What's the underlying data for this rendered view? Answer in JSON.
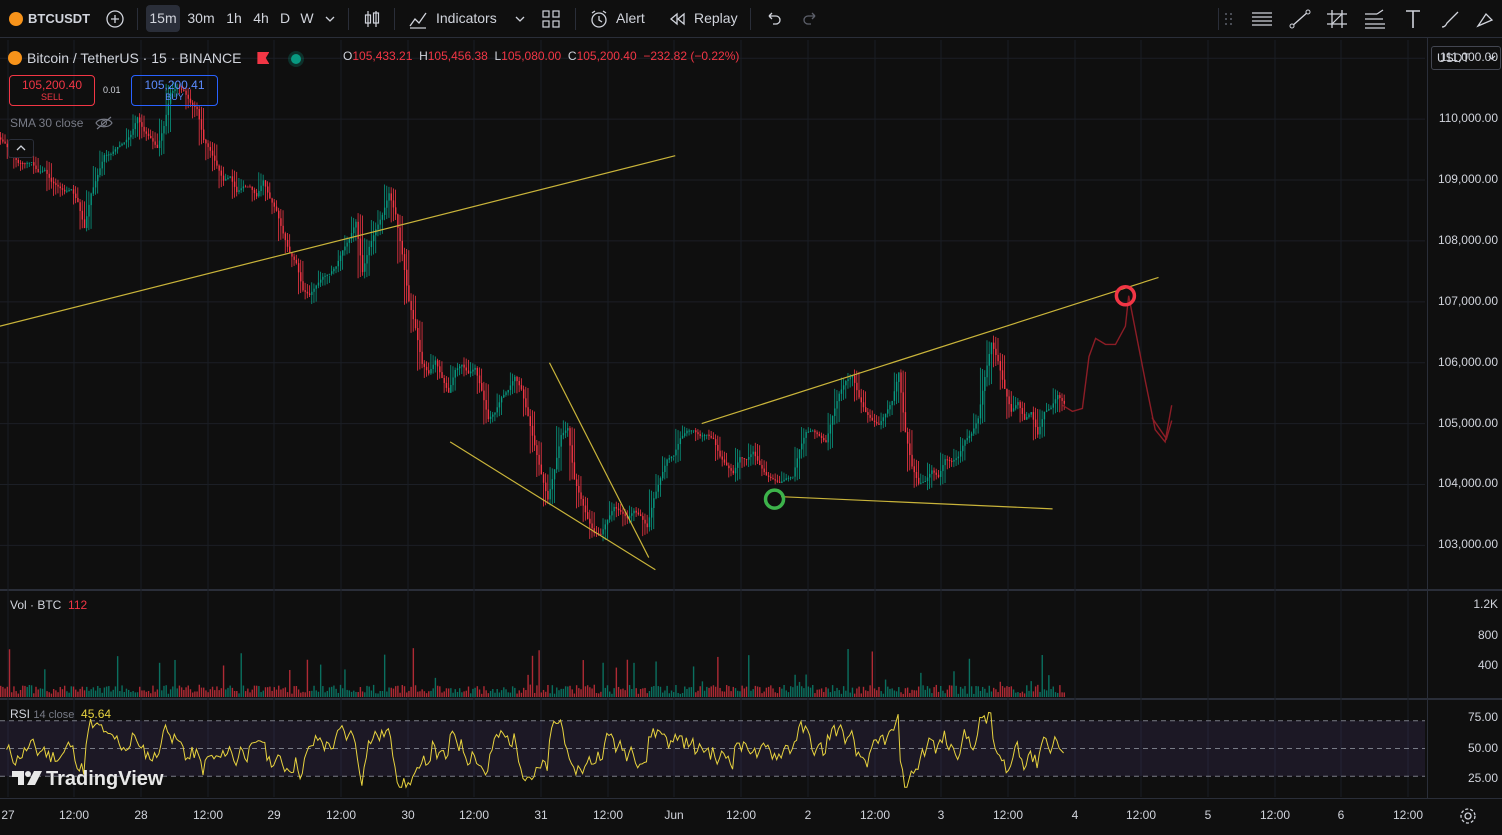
{
  "toolbar": {
    "symbol": "BTCUSDT",
    "intervals": [
      "15m",
      "30m",
      "1h",
      "4h",
      "D",
      "W"
    ],
    "active_interval": "15m",
    "indicators_label": "Indicators",
    "alert_label": "Alert",
    "replay_label": "Replay"
  },
  "legend": {
    "title": "Bitcoin / TetherUS · 15 · BINANCE",
    "open_key": "O",
    "open": "105,433.21",
    "high_key": "H",
    "high": "105,456.38",
    "low_key": "L",
    "low": "105,080.00",
    "close_key": "C",
    "close": "105,200.40",
    "change": "−232.82 (−0.22%)"
  },
  "trade": {
    "sell_price": "105,200.40",
    "sell_label": "SELL",
    "spread": "0.01",
    "buy_price": "105,200.41",
    "buy_label": "BUY"
  },
  "sma_label": "SMA 30 close",
  "volume_pane": {
    "label": "Vol · BTC",
    "value": "112"
  },
  "rsi_pane": {
    "label": "RSI",
    "params": "14 close",
    "value": "45.64"
  },
  "currency": "USDT",
  "branding": "TradingView",
  "colors": {
    "up": "#089981",
    "down": "#f23645",
    "trendline": "#c9b43a",
    "rsi": "#e8d33f",
    "accent": "#2962ff"
  },
  "chart_data": [
    {
      "type": "candlestick",
      "title": "",
      "yaxis_ticks": [
        "111,000.00",
        "110,000.00",
        "109,000.00",
        "108,000.00",
        "107,000.00",
        "106,000.00",
        "105,000.00",
        "104,000.00",
        "103,000.00"
      ],
      "ylim": [
        102300,
        111300
      ],
      "xaxis_ticks": [
        "27",
        "12:00",
        "28",
        "12:00",
        "29",
        "12:00",
        "30",
        "12:00",
        "31",
        "12:00",
        "Jun",
        "12:00",
        "2",
        "12:00",
        "3",
        "12:00",
        "4",
        "12:00",
        "5",
        "12:00",
        "6",
        "12:00"
      ],
      "price_path": [
        [
          0,
          109700
        ],
        [
          4,
          109300
        ],
        [
          8,
          109100
        ],
        [
          11,
          108800
        ],
        [
          13,
          108200
        ],
        [
          15,
          109200
        ],
        [
          18,
          109500
        ],
        [
          21,
          109900
        ],
        [
          24,
          109600
        ],
        [
          26,
          110300
        ],
        [
          28,
          110600
        ],
        [
          30,
          110100
        ],
        [
          32,
          109500
        ],
        [
          34,
          109000
        ],
        [
          36,
          108900
        ],
        [
          38,
          108800
        ],
        [
          40,
          108900
        ],
        [
          42,
          108500
        ],
        [
          44,
          107900
        ],
        [
          46,
          107300
        ],
        [
          48,
          107200
        ],
        [
          50,
          107500
        ],
        [
          52,
          107900
        ],
        [
          54,
          108200
        ],
        [
          55,
          107600
        ],
        [
          57,
          108200
        ],
        [
          59,
          108700
        ],
        [
          60,
          108300
        ],
        [
          61,
          107800
        ],
        [
          62,
          107000
        ],
        [
          63,
          106500
        ],
        [
          64,
          106000
        ],
        [
          66,
          105900
        ],
        [
          68,
          105500
        ],
        [
          70,
          106000
        ],
        [
          72,
          105800
        ],
        [
          74,
          105100
        ],
        [
          76,
          105500
        ],
        [
          78,
          105700
        ],
        [
          80,
          105200
        ],
        [
          82,
          104300
        ],
        [
          83,
          103800
        ],
        [
          85,
          104700
        ],
        [
          86,
          104800
        ],
        [
          87,
          104200
        ],
        [
          88,
          103700
        ],
        [
          90,
          103300
        ],
        [
          91,
          103100
        ],
        [
          92,
          103400
        ],
        [
          94,
          103600
        ],
        [
          96,
          103500
        ],
        [
          98,
          103400
        ],
        [
          99,
          103700
        ],
        [
          101,
          104300
        ],
        [
          103,
          104800
        ],
        [
          105,
          104900
        ],
        [
          107,
          104800
        ],
        [
          109,
          104600
        ],
        [
          111,
          104300
        ],
        [
          113,
          104500
        ],
        [
          115,
          104300
        ],
        [
          116,
          104200
        ],
        [
          118,
          103900
        ],
        [
          120,
          104200
        ],
        [
          121,
          104700
        ],
        [
          123,
          105000
        ],
        [
          125,
          104800
        ],
        [
          127,
          105500
        ],
        [
          129,
          105800
        ],
        [
          131,
          105200
        ],
        [
          133,
          104900
        ],
        [
          135,
          105300
        ],
        [
          136,
          105900
        ],
        [
          137,
          104800
        ],
        [
          138,
          104300
        ],
        [
          140,
          104000
        ],
        [
          142,
          104200
        ],
        [
          144,
          104400
        ],
        [
          146,
          104700
        ],
        [
          148,
          105200
        ],
        [
          149,
          105900
        ],
        [
          150,
          106400
        ],
        [
          151,
          106100
        ],
        [
          152,
          105600
        ],
        [
          153,
          105300
        ],
        [
          155,
          105200
        ],
        [
          157,
          104900
        ],
        [
          158,
          105300
        ],
        [
          160,
          105450
        ],
        [
          161,
          105200
        ]
      ],
      "trendlines": [
        {
          "from": [
            0,
            106600
          ],
          "to": [
            102,
            109400
          ]
        },
        {
          "from": [
            68,
            104700
          ],
          "to": [
            99,
            102600
          ]
        },
        {
          "from": [
            83,
            106000
          ],
          "to": [
            98,
            102800
          ]
        },
        {
          "from": [
            106,
            105000
          ],
          "to": [
            175,
            107400
          ]
        },
        {
          "from": [
            118,
            103800
          ],
          "to": [
            159,
            103600
          ]
        }
      ],
      "markers": [
        {
          "kind": "circle",
          "color": "#3db34b",
          "at": [
            117,
            103760
          ]
        },
        {
          "kind": "circle",
          "color": "#f23645",
          "at": [
            170,
            107100
          ]
        }
      ]
    },
    {
      "type": "bar",
      "name": "Vol · BTC",
      "yaxis_ticks": [
        "1.2K",
        "800",
        "400"
      ],
      "ylim": [
        0,
        1350
      ]
    },
    {
      "type": "line",
      "name": "RSI",
      "yaxis_ticks": [
        "75.00",
        "50.00",
        "25.00"
      ],
      "ylim": [
        15,
        85
      ],
      "bands": [
        30,
        70
      ]
    }
  ]
}
